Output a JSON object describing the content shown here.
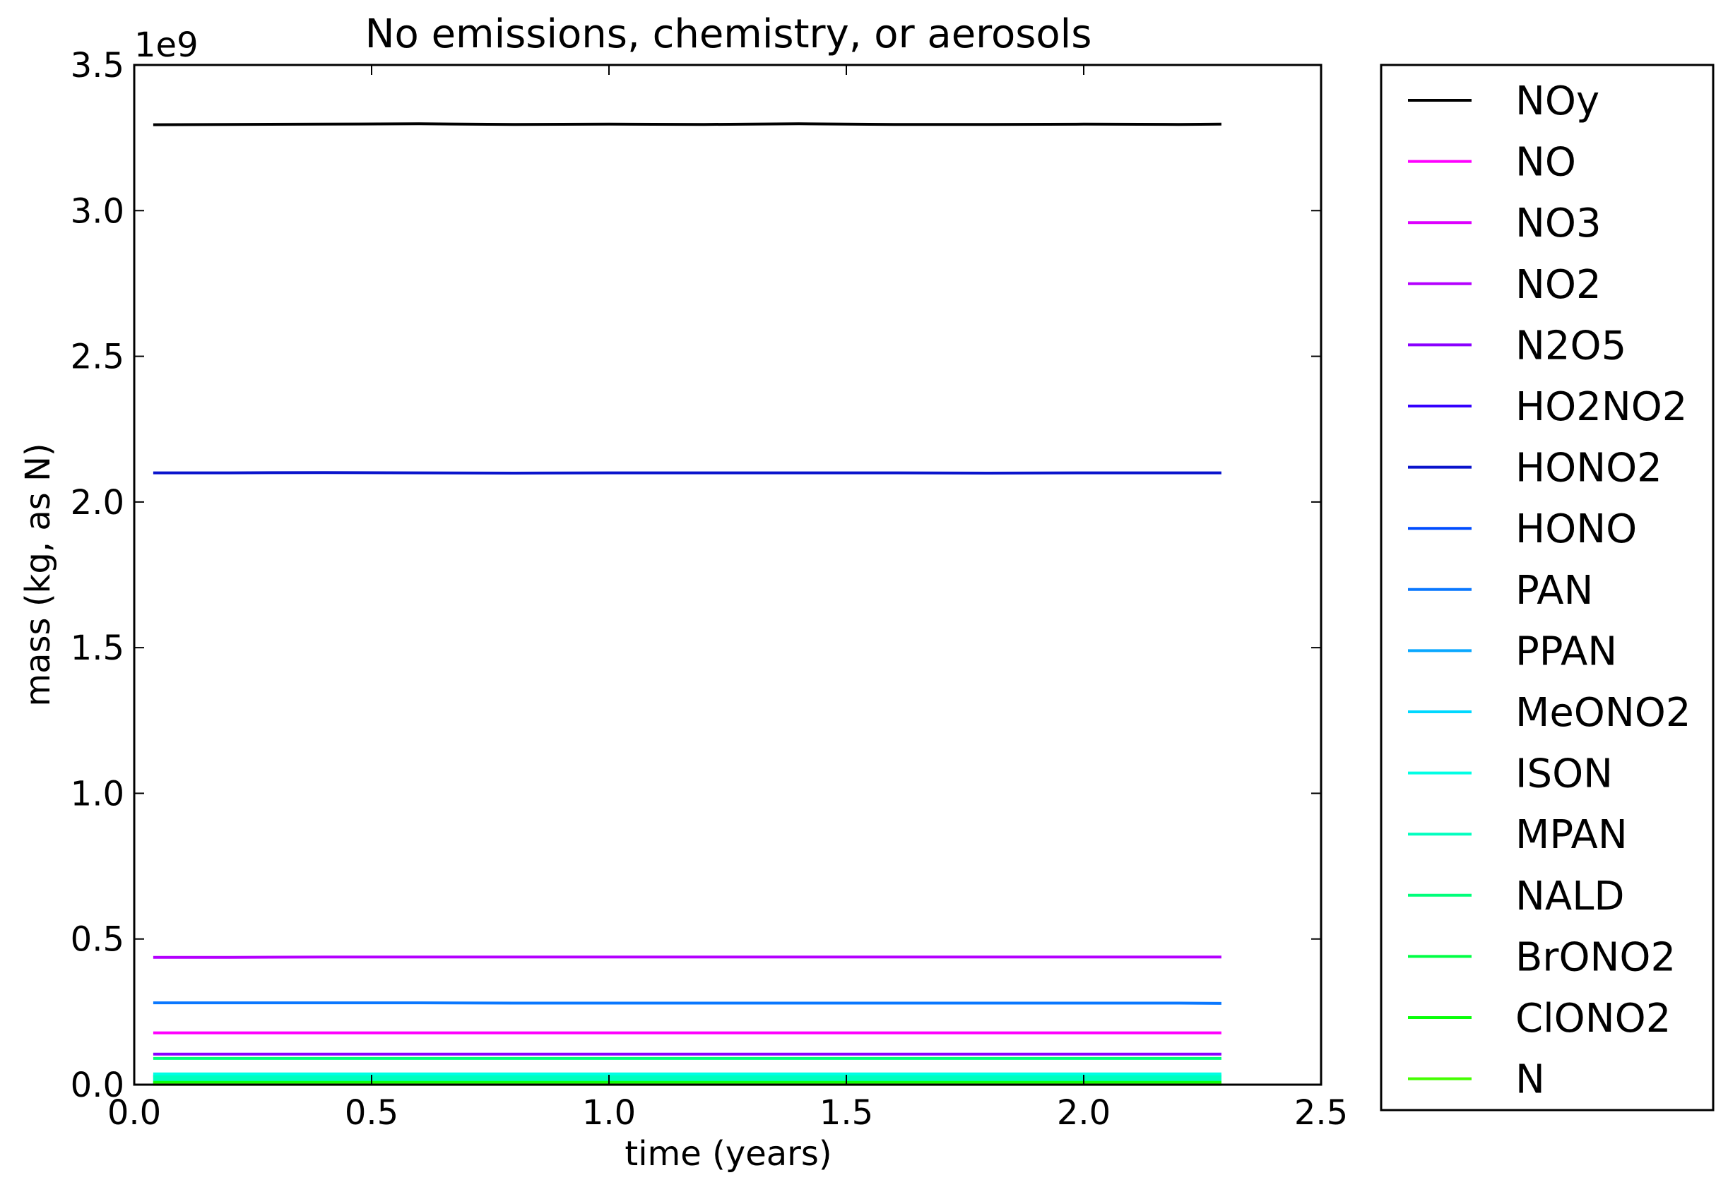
{
  "chart_data": {
    "type": "line",
    "title": "No emissions, chemistry, or aerosols",
    "xlabel": "time (years)",
    "ylabel": "mass (kg, as N)",
    "y_offset_label": "1e9",
    "xlim": [
      0.0,
      2.5
    ],
    "ylim": [
      0.0,
      3.5
    ],
    "x_ticks": [
      "0.0",
      "0.5",
      "1.0",
      "1.5",
      "2.0",
      "2.5"
    ],
    "y_ticks": [
      "0.0",
      "0.5",
      "1.0",
      "1.5",
      "2.0",
      "2.5",
      "3.0",
      "3.5"
    ],
    "grid": false,
    "legend_position": "outside-right",
    "x": [
      0.04,
      0.2,
      0.4,
      0.6,
      0.8,
      1.0,
      1.2,
      1.4,
      1.6,
      1.8,
      2.0,
      2.2,
      2.29
    ],
    "series": [
      {
        "name": "NOy",
        "color": "#000000",
        "values": [
          3.295,
          3.296,
          3.297,
          3.298,
          3.296,
          3.297,
          3.296,
          3.298,
          3.296,
          3.296,
          3.297,
          3.296,
          3.297
        ]
      },
      {
        "name": "NO",
        "color": "#ff00ff",
        "values": [
          0.178,
          0.178,
          0.178,
          0.178,
          0.178,
          0.178,
          0.178,
          0.178,
          0.178,
          0.178,
          0.178,
          0.178,
          0.178
        ]
      },
      {
        "name": "NO3",
        "color": "#dd00ff",
        "values": [
          0.002,
          0.002,
          0.002,
          0.002,
          0.002,
          0.002,
          0.002,
          0.002,
          0.002,
          0.002,
          0.002,
          0.002,
          0.002
        ]
      },
      {
        "name": "NO2",
        "color": "#b400ff",
        "values": [
          0.437,
          0.437,
          0.438,
          0.438,
          0.438,
          0.438,
          0.438,
          0.438,
          0.438,
          0.438,
          0.438,
          0.438,
          0.438
        ]
      },
      {
        "name": "N2O5",
        "color": "#8a00ff",
        "values": [
          0.105,
          0.105,
          0.105,
          0.105,
          0.105,
          0.105,
          0.105,
          0.105,
          0.105,
          0.105,
          0.105,
          0.105,
          0.105
        ]
      },
      {
        "name": "HO2NO2",
        "color": "#3300ff",
        "values": [
          0.03,
          0.03,
          0.03,
          0.03,
          0.03,
          0.03,
          0.03,
          0.03,
          0.03,
          0.03,
          0.03,
          0.03,
          0.03
        ]
      },
      {
        "name": "HONO2",
        "color": "#0a14cc",
        "values": [
          2.1,
          2.1,
          2.101,
          2.1,
          2.099,
          2.1,
          2.1,
          2.1,
          2.1,
          2.099,
          2.1,
          2.1,
          2.1
        ]
      },
      {
        "name": "HONO",
        "color": "#004cff",
        "values": [
          0.005,
          0.005,
          0.005,
          0.005,
          0.005,
          0.005,
          0.005,
          0.005,
          0.005,
          0.005,
          0.005,
          0.005,
          0.005
        ]
      },
      {
        "name": "PAN",
        "color": "#0a78ff",
        "values": [
          0.281,
          0.281,
          0.281,
          0.281,
          0.28,
          0.28,
          0.28,
          0.28,
          0.28,
          0.28,
          0.28,
          0.28,
          0.279
        ]
      },
      {
        "name": "PPAN",
        "color": "#0aa8ff",
        "values": [
          0.01,
          0.01,
          0.01,
          0.01,
          0.01,
          0.01,
          0.01,
          0.01,
          0.01,
          0.01,
          0.01,
          0.01,
          0.01
        ]
      },
      {
        "name": "MeONO2",
        "color": "#00d8ff",
        "values": [
          0.02,
          0.02,
          0.02,
          0.02,
          0.02,
          0.02,
          0.02,
          0.02,
          0.02,
          0.02,
          0.02,
          0.02,
          0.02
        ]
      },
      {
        "name": "ISON",
        "color": "#00ffe5",
        "values": [
          0.025,
          0.025,
          0.025,
          0.025,
          0.025,
          0.025,
          0.025,
          0.025,
          0.025,
          0.025,
          0.025,
          0.025,
          0.025
        ]
      },
      {
        "name": "MPAN",
        "color": "#00ffbf",
        "values": [
          0.015,
          0.015,
          0.015,
          0.015,
          0.015,
          0.015,
          0.015,
          0.015,
          0.015,
          0.015,
          0.015,
          0.015,
          0.015
        ]
      },
      {
        "name": "NALD",
        "color": "#00ff7a",
        "values": [
          0.09,
          0.09,
          0.09,
          0.09,
          0.09,
          0.09,
          0.09,
          0.09,
          0.09,
          0.09,
          0.09,
          0.09,
          0.09
        ]
      },
      {
        "name": "BrONO2",
        "color": "#00ff44",
        "values": [
          0.003,
          0.003,
          0.003,
          0.003,
          0.003,
          0.003,
          0.003,
          0.003,
          0.003,
          0.003,
          0.003,
          0.003,
          0.003
        ]
      },
      {
        "name": "ClONO2",
        "color": "#0aff0a",
        "values": [
          0.008,
          0.008,
          0.008,
          0.008,
          0.008,
          0.008,
          0.008,
          0.008,
          0.008,
          0.008,
          0.008,
          0.008,
          0.008
        ]
      },
      {
        "name": "N",
        "color": "#44ff00",
        "values": [
          0.001,
          0.001,
          0.001,
          0.001,
          0.001,
          0.001,
          0.001,
          0.001,
          0.001,
          0.001,
          0.001,
          0.001,
          0.001
        ]
      }
    ]
  }
}
